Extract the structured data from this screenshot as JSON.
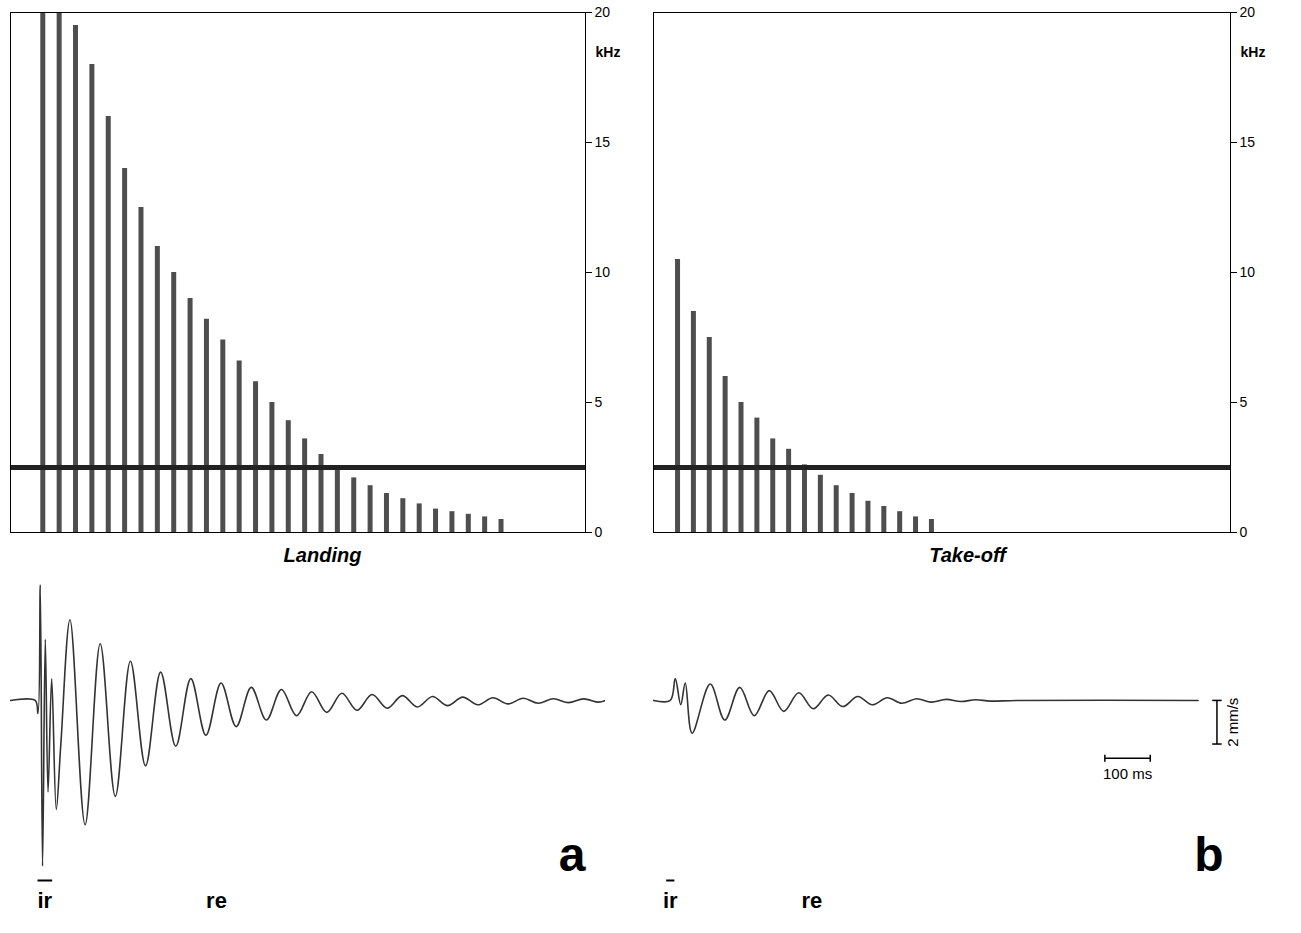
{
  "chart_data": [
    {
      "type": "spectrogram",
      "title": "Landing",
      "xlim": [
        0,
        1300
      ],
      "ylim": [
        0,
        20
      ],
      "yticks": [
        0,
        5,
        10,
        15,
        20
      ],
      "ylabel": "kHz",
      "tick_labels": "y",
      "color": "#222222",
      "hline": 2.5,
      "x": [
        73,
        110,
        147,
        184,
        221,
        258,
        295,
        332,
        369,
        406,
        443,
        480,
        517,
        554,
        591,
        628,
        665,
        702,
        739,
        776,
        813,
        850,
        887,
        924,
        961,
        998,
        1035,
        1072,
        1109
      ],
      "values": [
        20,
        20,
        19.5,
        18,
        16,
        14,
        12.5,
        11,
        10,
        9,
        8.2,
        7.4,
        6.6,
        5.8,
        5,
        4.3,
        3.6,
        3,
        2.5,
        2.1,
        1.8,
        1.5,
        1.3,
        1.1,
        0.9,
        0.8,
        0.7,
        0.6,
        0.5
      ]
    },
    {
      "type": "line",
      "panel": "a",
      "xlim": [
        0,
        1300
      ],
      "ylim": [
        -7.8,
        5.5
      ],
      "tick_labels": false,
      "color": "#333333",
      "x": [
        0,
        54,
        60,
        65,
        70,
        76,
        82,
        90,
        100,
        110,
        130,
        163,
        196,
        229,
        262,
        295,
        328,
        361,
        394,
        427,
        460,
        493,
        526,
        559,
        592,
        625,
        658,
        691,
        724,
        757,
        790,
        823,
        856,
        889,
        922,
        955,
        988,
        1021,
        1054,
        1087,
        1120,
        1153,
        1186,
        1219,
        1252,
        1285,
        1300
      ],
      "values": [
        0,
        0,
        -0.6,
        5.3,
        -7.6,
        2.8,
        -4.2,
        1.0,
        -5.0,
        -2.0,
        3.7,
        -5.7,
        2.6,
        -4.4,
        1.8,
        -3.0,
        1.3,
        -2.1,
        1.0,
        -1.6,
        0.8,
        -1.2,
        0.6,
        -0.9,
        0.5,
        -0.7,
        0.4,
        -0.55,
        0.33,
        -0.45,
        0.27,
        -0.36,
        0.22,
        -0.3,
        0.18,
        -0.24,
        0.15,
        -0.2,
        0.12,
        -0.16,
        0.1,
        -0.13,
        0.08,
        -0.1,
        0.07,
        -0.08,
        0
      ],
      "annotations": [
        {
          "text": "ir",
          "x": [
            59,
            91
          ]
        },
        {
          "text": "re",
          "x": 450
        }
      ]
    },
    {
      "type": "spectrogram",
      "title": "Take-off",
      "xlim": [
        0,
        1200
      ],
      "ylim": [
        0,
        20
      ],
      "yticks": [
        0,
        5,
        10,
        15,
        20
      ],
      "ylabel": "kHz",
      "tick_labels": "y",
      "color": "#222222",
      "hline": 2.5,
      "x": [
        50,
        83,
        116,
        149,
        182,
        215,
        248,
        281,
        314,
        347,
        380,
        413,
        446,
        479,
        512,
        545,
        578
      ],
      "values": [
        10.5,
        8.5,
        7.5,
        6,
        5,
        4.4,
        3.6,
        3.2,
        2.6,
        2.2,
        1.8,
        1.5,
        1.2,
        1,
        0.8,
        0.6,
        0.5
      ]
    },
    {
      "type": "line",
      "panel": "b",
      "xlim": [
        0,
        1300
      ],
      "ylim": [
        -7.8,
        5.5
      ],
      "tick_labels": false,
      "color": "#333333",
      "x": [
        0,
        37,
        48,
        60,
        70,
        85,
        125,
        157,
        190,
        222,
        255,
        287,
        320,
        352,
        385,
        417,
        450,
        482,
        515,
        547,
        580,
        612,
        645,
        677,
        710,
        742,
        800,
        1200
      ],
      "values": [
        0,
        0,
        1.0,
        -0.2,
        0.8,
        -1.5,
        0.75,
        -0.9,
        0.6,
        -0.7,
        0.45,
        -0.5,
        0.35,
        -0.38,
        0.25,
        -0.28,
        0.18,
        -0.2,
        0.12,
        -0.13,
        0.08,
        -0.08,
        0.05,
        -0.05,
        0.03,
        -0.03,
        0,
        0
      ],
      "annotations": [
        {
          "text": "ir",
          "x": [
            28,
            46
          ]
        },
        {
          "text": "re",
          "x": 349
        }
      ],
      "scale_bars": [
        {
          "axis": "x",
          "value": 100,
          "label": "100 ms"
        },
        {
          "axis": "y",
          "value": 2,
          "label": "2 mm/s"
        }
      ]
    }
  ]
}
